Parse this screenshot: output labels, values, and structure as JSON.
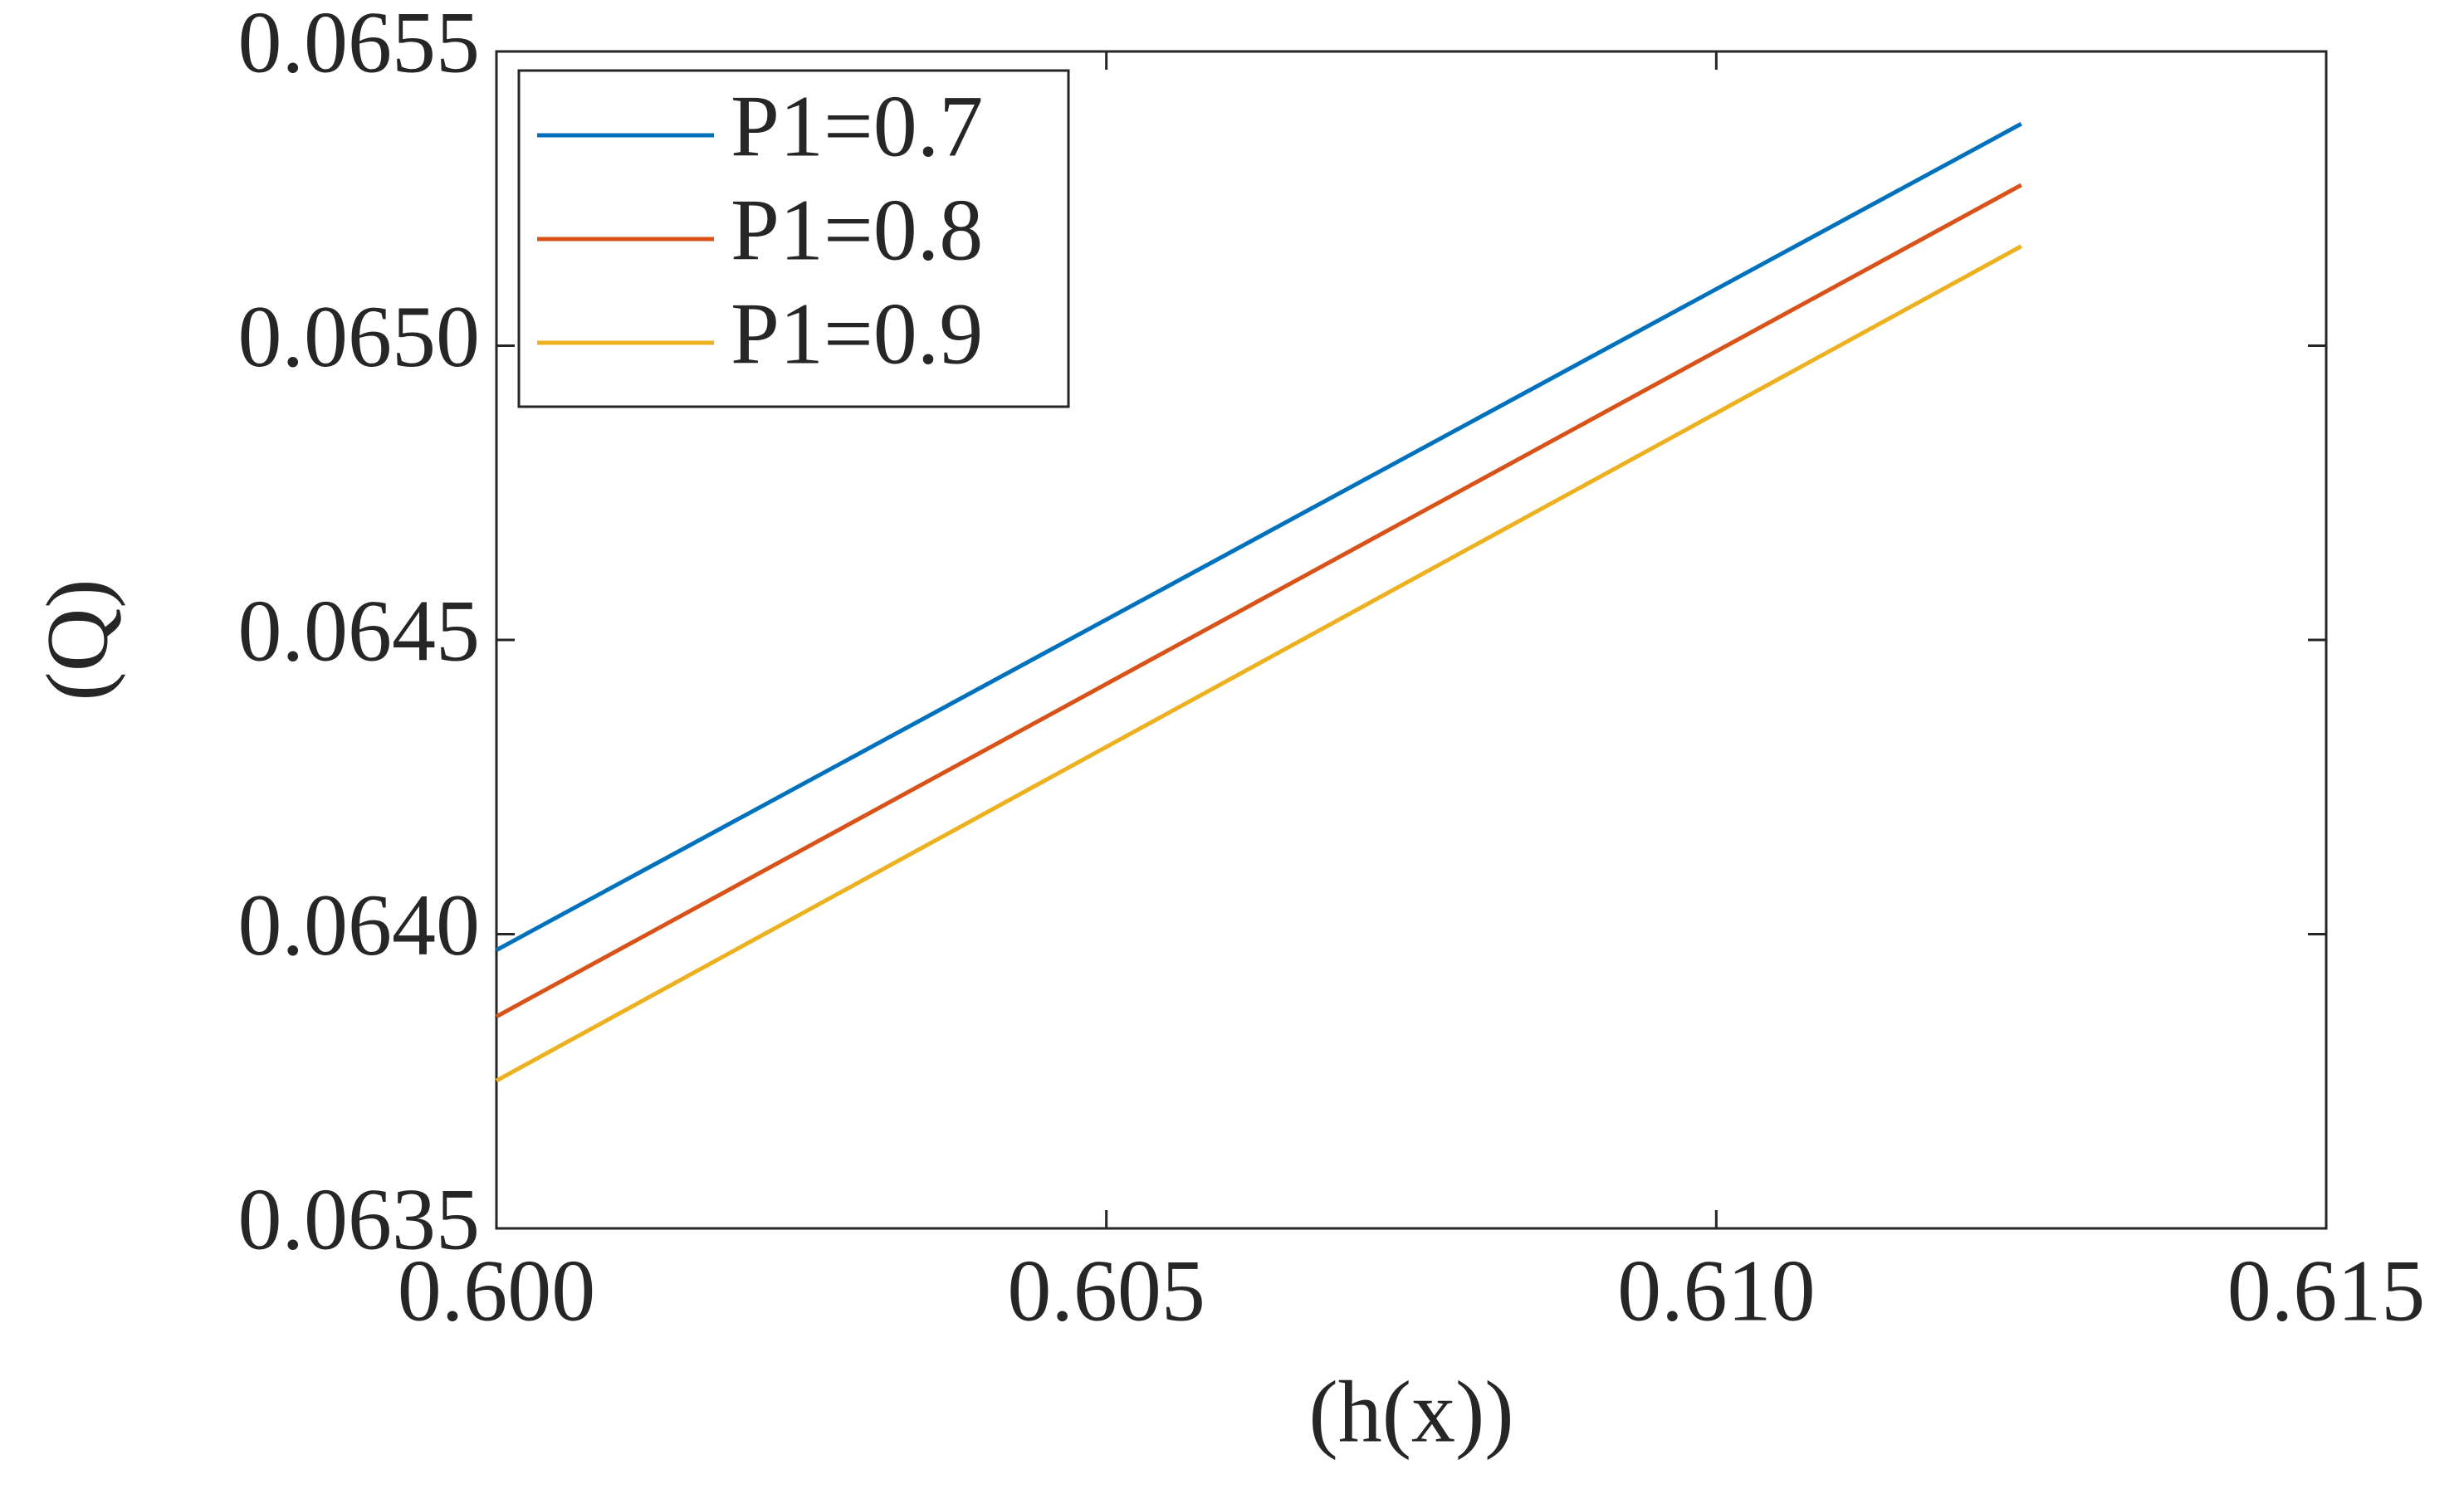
{
  "chart_data": {
    "type": "line",
    "x_label": "(h(x))",
    "y_label": "(Q)",
    "x": [
      0.6,
      0.6125
    ],
    "series": [
      {
        "name": "P1=0.7",
        "color": "#0072bd",
        "values": [
          0.063973,
          0.065377
        ]
      },
      {
        "name": "P1=0.8",
        "color": "#d95319",
        "values": [
          0.06386,
          0.065273
        ]
      },
      {
        "name": "P1=0.9",
        "color": "#edb120",
        "values": [
          0.063751,
          0.065169
        ]
      }
    ],
    "xlim": [
      0.6,
      0.615
    ],
    "xticks": [
      {
        "value": 0.6,
        "label": "0.600"
      },
      0.605,
      {
        "value": 0.61,
        "label": "0.610"
      },
      0.615
    ],
    "ylim": [
      0.0635,
      0.0655
    ],
    "yticks": [
      0.0635,
      {
        "value": 0.064,
        "label": "0.0640"
      },
      0.0645,
      {
        "value": 0.065,
        "label": "0.0650"
      },
      0.0655
    ],
    "grid": false,
    "legend": "upper left"
  }
}
